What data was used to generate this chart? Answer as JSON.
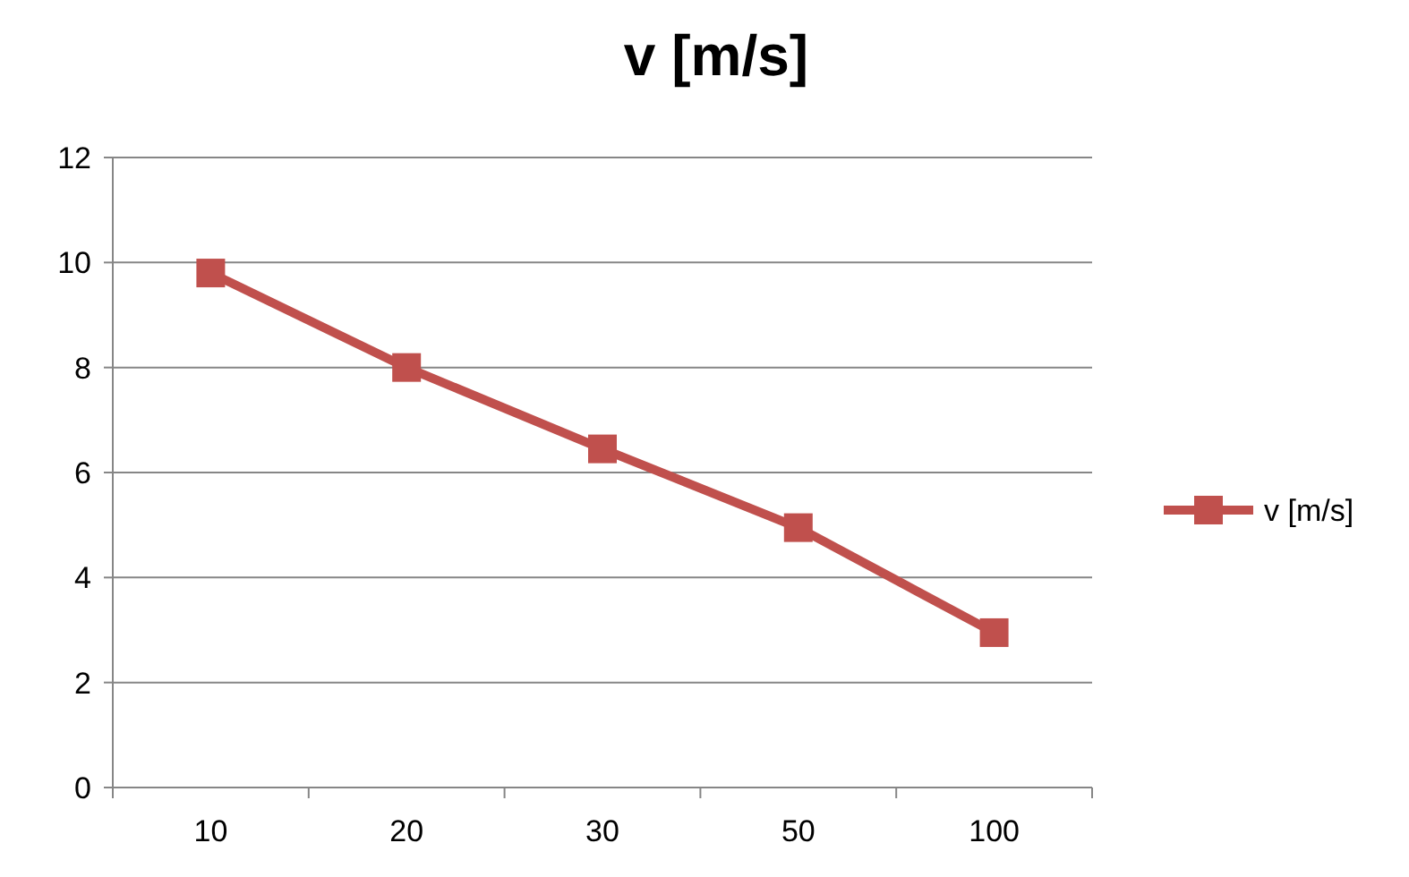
{
  "chart_data": {
    "type": "line",
    "title": "v [m/s]",
    "categories": [
      "10",
      "20",
      "30",
      "50",
      "100"
    ],
    "series": [
      {
        "name": "v [m/s]",
        "color": "#c0504d",
        "values": [
          9.8,
          8.0,
          6.45,
          4.95,
          2.95
        ]
      }
    ],
    "ylim": [
      0,
      12
    ],
    "yticks": [
      0,
      2,
      4,
      6,
      8,
      10,
      12
    ],
    "grid": "y",
    "legend": "right",
    "marker": "square",
    "line_style": "solid"
  }
}
